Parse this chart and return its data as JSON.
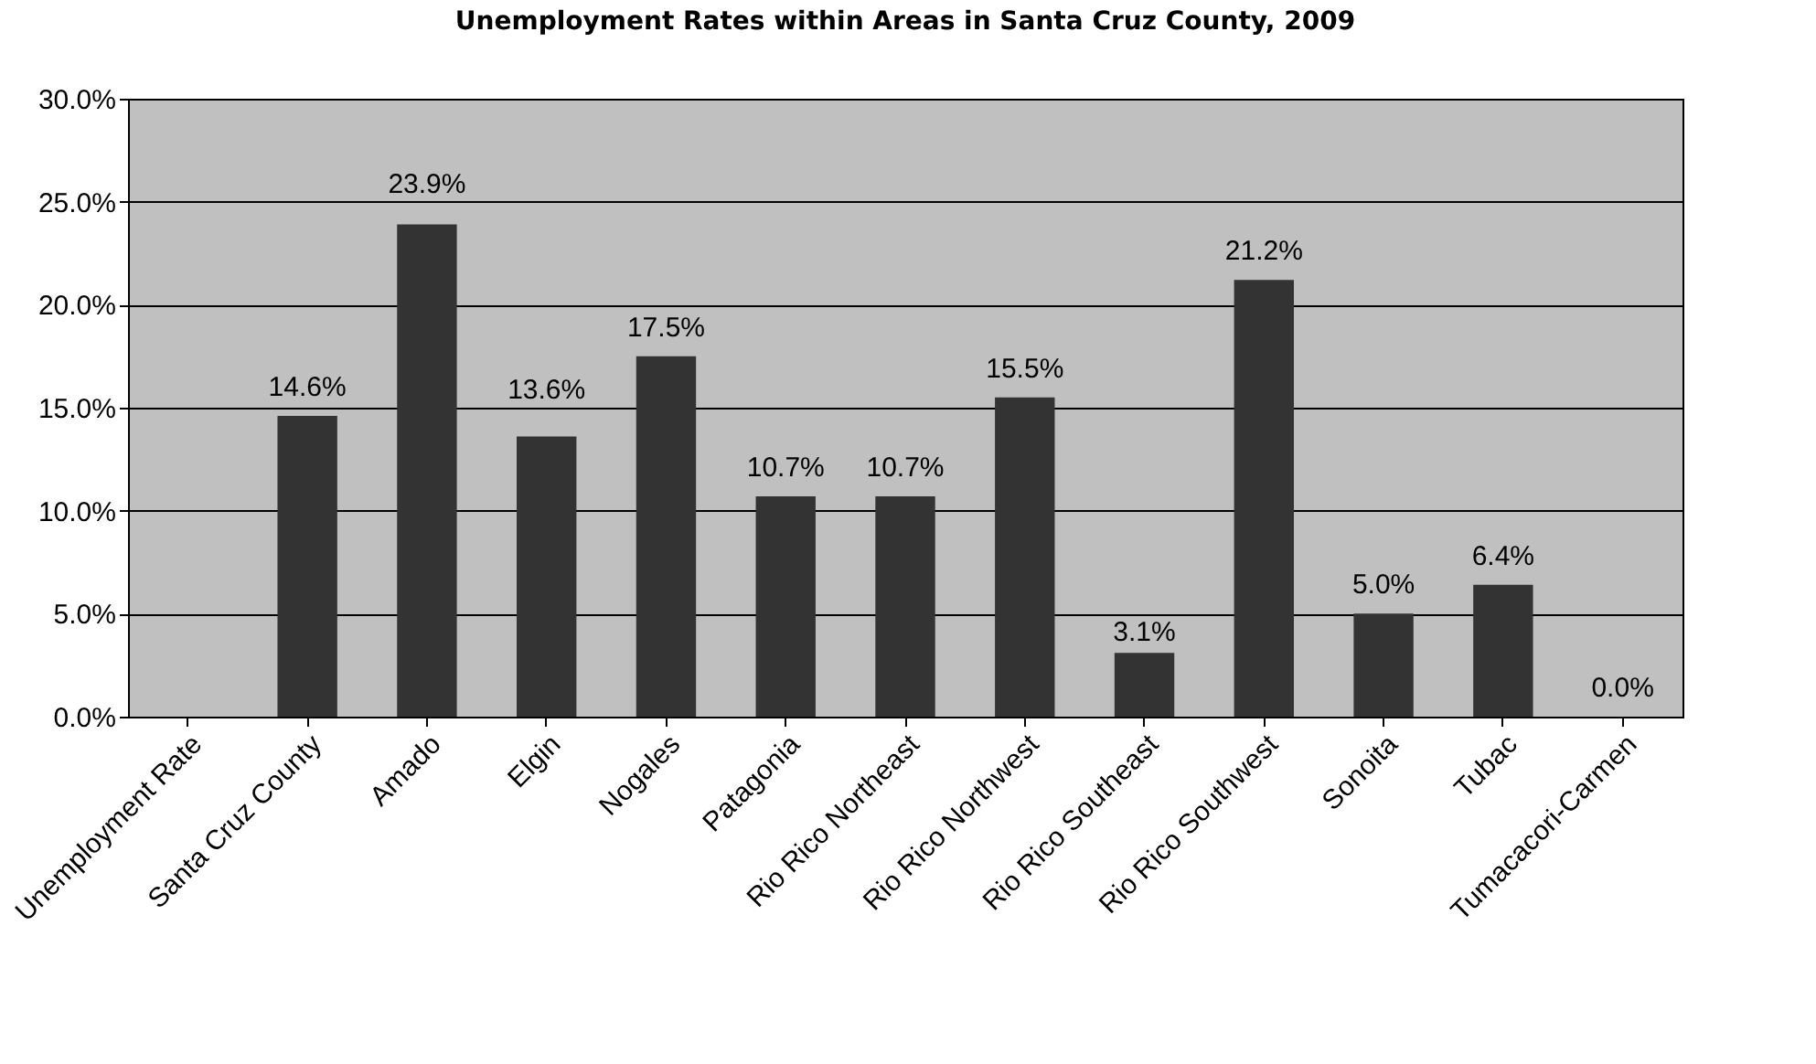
{
  "chart_data": {
    "type": "bar",
    "title": "Unemployment Rates within Areas in Santa Cruz County, 2009",
    "categories": [
      "Unemployment Rate",
      "Santa Cruz County",
      "Amado",
      "Elgin",
      "Nogales",
      "Patagonia",
      "Rio Rico Northeast",
      "Rio Rico Northwest",
      "Rio Rico Southeast",
      "Rio Rico Southwest",
      "Sonoita",
      "Tubac",
      "Tumacacori-Carmen"
    ],
    "values": [
      null,
      14.6,
      23.9,
      13.6,
      17.5,
      10.7,
      10.7,
      15.5,
      3.1,
      21.2,
      5.0,
      6.4,
      0.0
    ],
    "value_labels": [
      null,
      "14.6%",
      "23.9%",
      "13.6%",
      "17.5%",
      "10.7%",
      "10.7%",
      "15.5%",
      "3.1%",
      "21.2%",
      "5.0%",
      "6.4%",
      "0.0%"
    ],
    "color": "#333333",
    "ylim": [
      0,
      30
    ],
    "yticks": [
      {
        "value": 0,
        "label": "0.0%"
      },
      {
        "value": 5,
        "label": "5.0%"
      },
      {
        "value": 10,
        "label": "10.0%"
      },
      {
        "value": 15,
        "label": "15.0%"
      },
      {
        "value": 20,
        "label": "20.0%"
      },
      {
        "value": 25,
        "label": "25.0%"
      },
      {
        "value": 30,
        "label": "30.0%"
      }
    ],
    "grid": "y",
    "legend": false
  }
}
